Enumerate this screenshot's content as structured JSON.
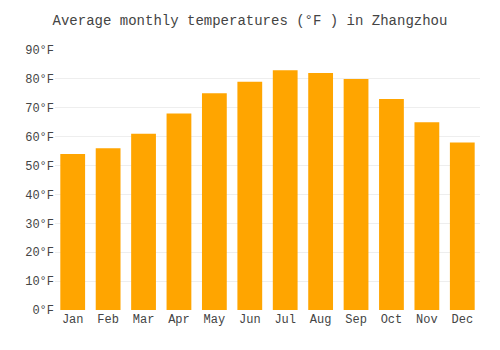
{
  "chart_data": {
    "type": "bar",
    "title": "Average monthly temperatures (°F ) in Zhangzhou",
    "categories": [
      "Jan",
      "Feb",
      "Mar",
      "Apr",
      "May",
      "Jun",
      "Jul",
      "Aug",
      "Sep",
      "Oct",
      "Nov",
      "Dec"
    ],
    "values": [
      54,
      56,
      61,
      68,
      75,
      79,
      83,
      82,
      80,
      73,
      65,
      58
    ],
    "color": "#FFA500",
    "ylim": [
      0,
      90
    ],
    "yticks": [
      {
        "value": 0,
        "label": "0°F"
      },
      {
        "value": 10,
        "label": "10°F"
      },
      {
        "value": 20,
        "label": "20°F"
      },
      {
        "value": 30,
        "label": "30°F"
      },
      {
        "value": 40,
        "label": "40°F"
      },
      {
        "value": 50,
        "label": "50°F"
      },
      {
        "value": 60,
        "label": "60°F"
      },
      {
        "value": 70,
        "label": "70°F"
      },
      {
        "value": 80,
        "label": "80°F"
      },
      {
        "value": 90,
        "label": "90°F"
      }
    ],
    "grid": true
  }
}
